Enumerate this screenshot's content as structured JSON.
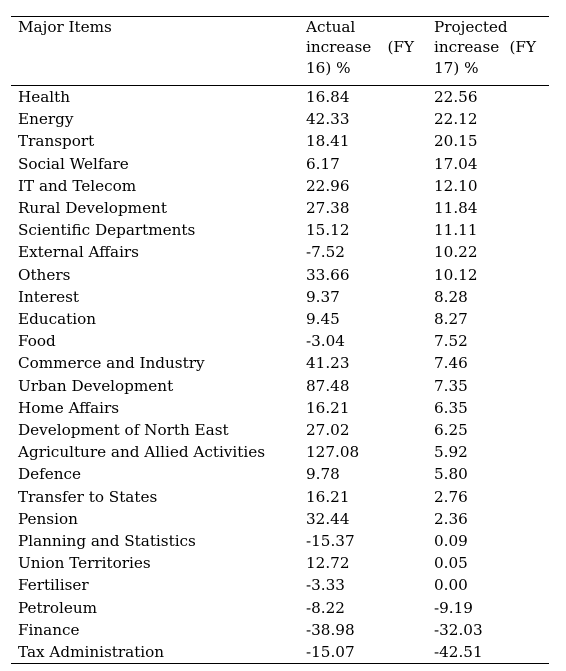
{
  "table": {
    "headers": [
      "Major Items",
      "Actual increase (FY 16) %",
      "Projected increase (FY 17) %"
    ],
    "rows": [
      [
        "Health",
        "16.84",
        "22.56"
      ],
      [
        "Energy",
        "42.33",
        "22.12"
      ],
      [
        "Transport",
        "18.41",
        "20.15"
      ],
      [
        "Social Welfare",
        "6.17",
        "17.04"
      ],
      [
        "IT and Telecom",
        "22.96",
        "12.10"
      ],
      [
        "Rural Development",
        "27.38",
        "11.84"
      ],
      [
        "Scientific Departments",
        "15.12",
        "11.11"
      ],
      [
        "External Affairs",
        "-7.52",
        "10.22"
      ],
      [
        "Others",
        "33.66",
        "10.12"
      ],
      [
        "Interest",
        "9.37",
        "8.28"
      ],
      [
        "Education",
        "9.45",
        "8.27"
      ],
      [
        "Food",
        "-3.04",
        "7.52"
      ],
      [
        "Commerce and Industry",
        "41.23",
        "7.46"
      ],
      [
        "Urban Development",
        "87.48",
        "7.35"
      ],
      [
        "Home Affairs",
        "16.21",
        "6.35"
      ],
      [
        "Development of North East",
        "27.02",
        "6.25"
      ],
      [
        "Agriculture and Allied Activities",
        "127.08",
        "5.92"
      ],
      [
        "Defence",
        "9.78",
        "5.80"
      ],
      [
        "Transfer to States",
        "16.21",
        "2.76"
      ],
      [
        "Pension",
        "32.44",
        "2.36"
      ],
      [
        "Planning and Statistics",
        "-15.37",
        "0.09"
      ],
      [
        "Union Territories",
        "12.72",
        "0.05"
      ],
      [
        "Fertiliser",
        "-3.33",
        "0.00"
      ],
      [
        "Petroleum",
        "-8.22",
        "-9.19"
      ],
      [
        "Finance",
        "-38.98",
        "-32.03"
      ],
      [
        "Tax Administration",
        "-15.07",
        "-42.51"
      ]
    ]
  }
}
